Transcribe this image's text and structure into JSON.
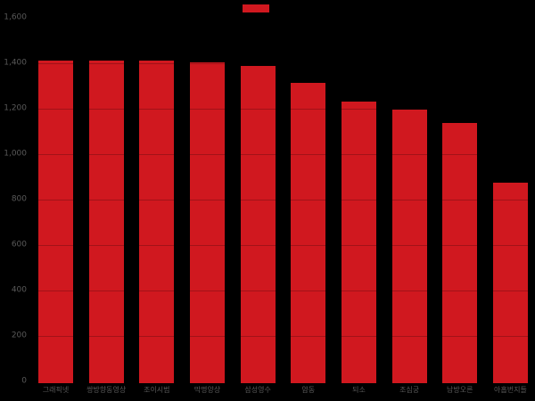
{
  "chart_data": {
    "type": "bar",
    "title": "",
    "categories": [
      "그래픽넷",
      "쌍방향동영상",
      "조이시범",
      "막명양상",
      "삼성영수",
      "얌동",
      "되소",
      "조심궁",
      "남방오른",
      "아홉번지들"
    ],
    "values": [
      1412,
      1412,
      1410,
      1405,
      1390,
      1313,
      1232,
      1195,
      1136,
      875
    ],
    "xlabel": "",
    "ylabel": "",
    "ylim": [
      0,
      1600
    ],
    "y_ticks": [
      1600,
      1400,
      1200,
      1000,
      800,
      600,
      400,
      200,
      0
    ],
    "y_tick_labels": [
      "1,600",
      "1,400",
      "1,200",
      "1,000",
      "800",
      "600",
      "400",
      "200",
      "0"
    ],
    "grid": false,
    "legend_position": "top-center",
    "legend": {
      "label": "",
      "swatch_color": "#d0181f"
    },
    "colors": {
      "bar": "#d0181f",
      "axis_text": "#595959",
      "background": "#000000"
    }
  }
}
